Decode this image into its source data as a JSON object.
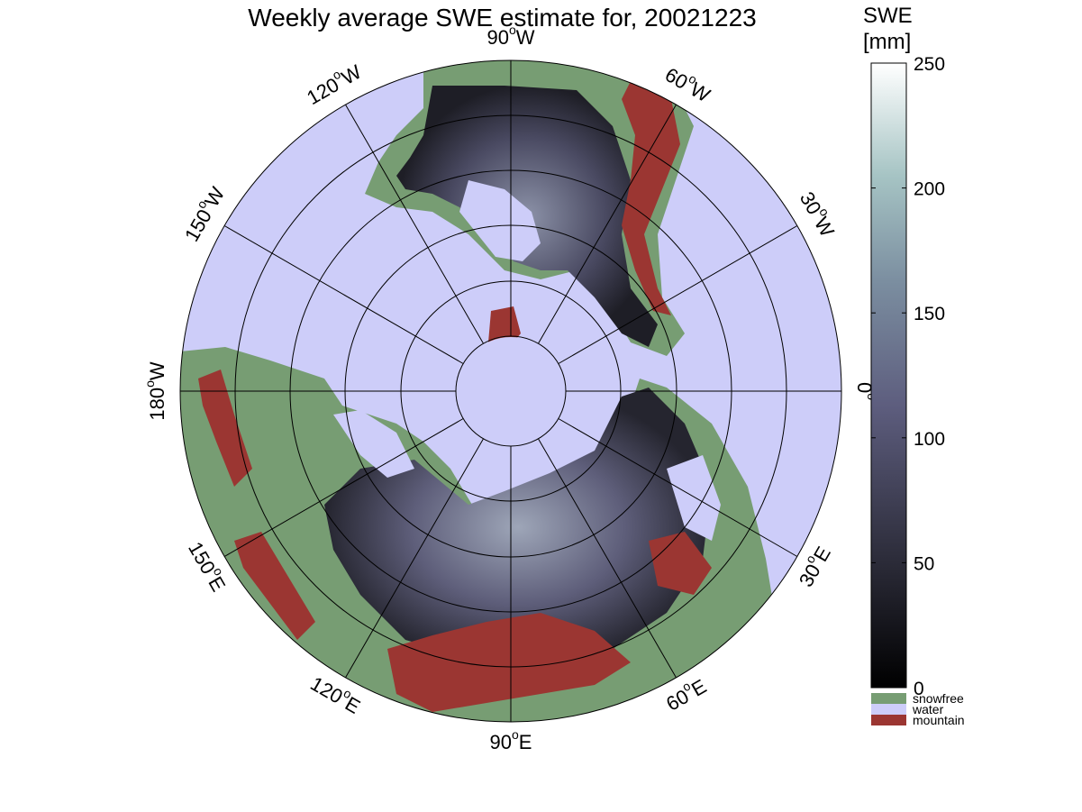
{
  "title": "Weekly average SWE estimate for, 20021223",
  "legend": {
    "title_line1": "SWE",
    "title_line2": "[mm]",
    "ticks": [
      "0",
      "50",
      "100",
      "150",
      "200",
      "250"
    ],
    "tick_values": [
      0,
      50,
      100,
      150,
      200,
      250
    ],
    "range": [
      0,
      250
    ],
    "categories": [
      {
        "label": "snowfree",
        "color": "#779d73"
      },
      {
        "label": "water",
        "color": "#cdcdf9"
      },
      {
        "label": "mountain",
        "color": "#9b3632"
      }
    ]
  },
  "map": {
    "projection": "north polar stereographic",
    "longitude_labels": [
      {
        "label": "90",
        "unit": "W",
        "lon": -90
      },
      {
        "label": "120",
        "unit": "W",
        "lon": -120
      },
      {
        "label": "150",
        "unit": "W",
        "lon": -150
      },
      {
        "label": "180",
        "unit": "W",
        "lon": 180
      },
      {
        "label": "150",
        "unit": "E",
        "lon": 150
      },
      {
        "label": "120",
        "unit": "E",
        "lon": 120
      },
      {
        "label": "90",
        "unit": "E",
        "lon": 90
      },
      {
        "label": "60",
        "unit": "E",
        "lon": 60
      },
      {
        "label": "30",
        "unit": "E",
        "lon": 30
      },
      {
        "label": "0",
        "unit": "",
        "lon": 0
      },
      {
        "label": "30",
        "unit": "W",
        "lon": -30
      },
      {
        "label": "60",
        "unit": "W",
        "lon": -60
      }
    ],
    "colors": {
      "water": "#cdcdf9",
      "snowfree": "#779d73",
      "mountain": "#9b3632",
      "snow_low": "#1a1a22",
      "snow_mid": "#5c5c78",
      "snow_high": "#9eaab8"
    }
  }
}
